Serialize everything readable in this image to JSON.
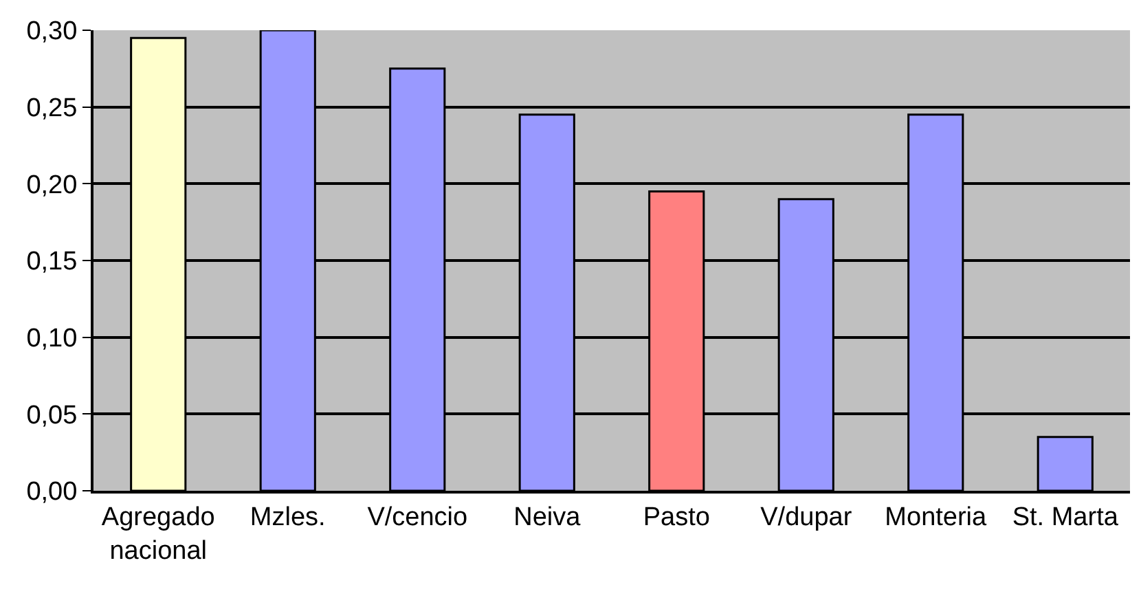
{
  "chart_data": {
    "type": "bar",
    "categories": [
      "Agregado\nnacional",
      "Mzles.",
      "V/cencio",
      "Neiva",
      "Pasto",
      "V/dupar",
      "Monteria",
      "St. Marta"
    ],
    "values": [
      0.295,
      0.3,
      0.275,
      0.245,
      0.195,
      0.19,
      0.245,
      0.035
    ],
    "colors": [
      "#ffffcc",
      "#9999ff",
      "#9999ff",
      "#9999ff",
      "#ff8080",
      "#9999ff",
      "#9999ff",
      "#9999ff"
    ],
    "ylim": [
      0,
      0.3
    ],
    "yticks": [
      {
        "value": 0,
        "label": "0,00"
      },
      {
        "value": 0.05,
        "label": "0,05"
      },
      {
        "value": 0.1,
        "label": "0,10"
      },
      {
        "value": 0.15,
        "label": "0,15"
      },
      {
        "value": 0.2,
        "label": "0,20"
      },
      {
        "value": 0.25,
        "label": "0,25"
      },
      {
        "value": 0.3,
        "label": "0,30"
      }
    ],
    "grid": "y"
  }
}
